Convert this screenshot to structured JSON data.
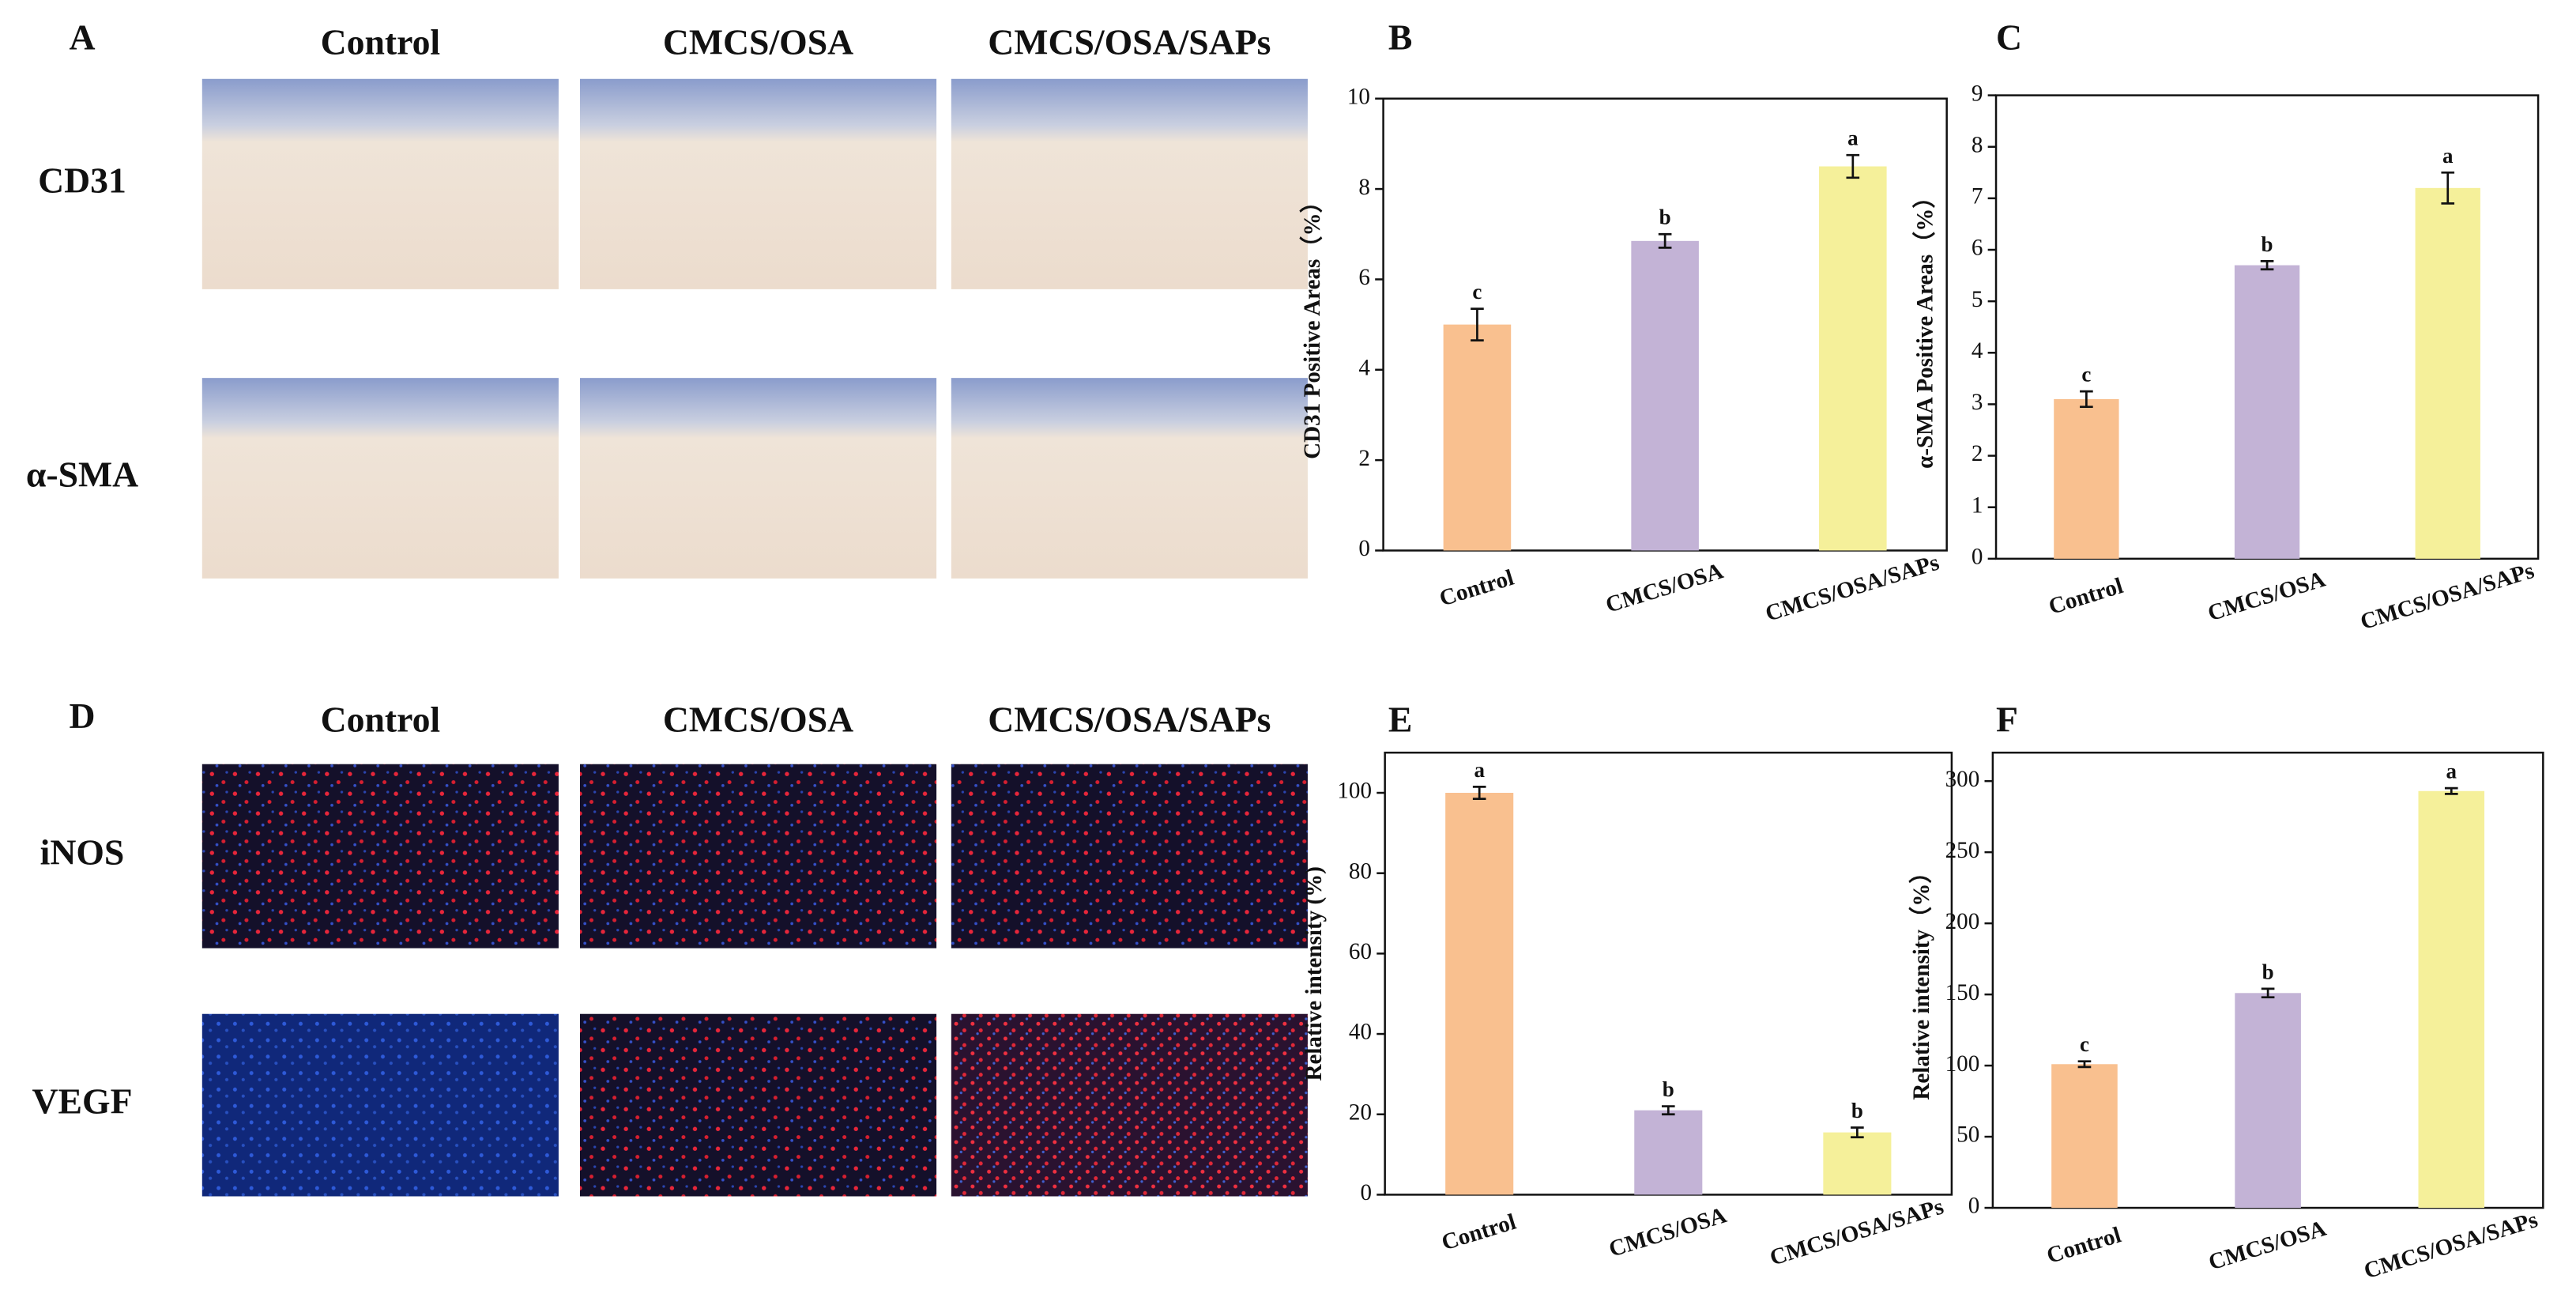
{
  "image_panels": [
    {
      "letter": "A",
      "columns": [
        "Control",
        "CMCS/OSA",
        "CMCS/OSA/SAPs"
      ],
      "rows": [
        "CD31",
        "α-SMA"
      ]
    },
    {
      "letter": "D",
      "columns": [
        "Control",
        "CMCS/OSA",
        "CMCS/OSA/SAPs"
      ],
      "rows": [
        "iNOS",
        "VEGF"
      ]
    }
  ],
  "chart_data": [
    {
      "type": "bar",
      "label": "B",
      "y_label": "CD31 Positive Areas（%）",
      "categories": [
        "Control",
        "CMCS/OSA",
        "CMCS/OSA/SAPs"
      ],
      "values": [
        5.0,
        6.85,
        8.5
      ],
      "errors": [
        0.35,
        0.15,
        0.25
      ],
      "annotations": [
        "c",
        "b",
        "a"
      ],
      "colors": [
        "#f9c08f",
        "#c3b3d6",
        "#f5f09a"
      ],
      "ylim": [
        0,
        10
      ],
      "yticks": [
        0,
        2,
        4,
        6,
        8,
        10
      ]
    },
    {
      "type": "bar",
      "label": "C",
      "y_label": "α-SMA Positive Areas（%）",
      "categories": [
        "Control",
        "CMCS/OSA",
        "CMCS/OSA/SAPs"
      ],
      "values": [
        3.1,
        5.7,
        7.2
      ],
      "errors": [
        0.15,
        0.08,
        0.3
      ],
      "annotations": [
        "c",
        "b",
        "a"
      ],
      "colors": [
        "#f9c08f",
        "#c3b3d6",
        "#f5f09a"
      ],
      "ylim": [
        0,
        9
      ],
      "yticks": [
        0,
        1,
        2,
        3,
        4,
        5,
        6,
        7,
        8,
        9
      ]
    },
    {
      "type": "bar",
      "label": "E",
      "y_label": "Relative intensity (%)",
      "categories": [
        "Control",
        "CMCS/OSA",
        "CMCS/OSA/SAPs"
      ],
      "values": [
        100,
        21,
        15.5
      ],
      "errors": [
        1.5,
        1,
        1.2
      ],
      "annotations": [
        "a",
        "b",
        "b"
      ],
      "colors": [
        "#f9c08f",
        "#c3b3d6",
        "#f5f09a"
      ],
      "ylim": [
        0,
        110
      ],
      "yticks": [
        0,
        20,
        40,
        60,
        80,
        100
      ]
    },
    {
      "type": "bar",
      "label": "F",
      "y_label": "Relative intensity（%）",
      "categories": [
        "Control",
        "CMCS/OSA",
        "CMCS/OSA/SAPs"
      ],
      "values": [
        101,
        151,
        293
      ],
      "errors": [
        2,
        3,
        2
      ],
      "annotations": [
        "c",
        "b",
        "a"
      ],
      "colors": [
        "#f9c08f",
        "#c3b3d6",
        "#f5f09a"
      ],
      "ylim": [
        0,
        320
      ],
      "yticks": [
        0,
        50,
        100,
        150,
        200,
        250,
        300
      ]
    }
  ]
}
